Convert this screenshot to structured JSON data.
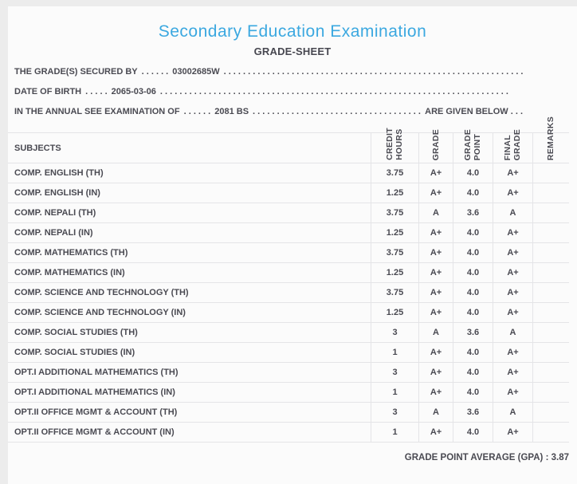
{
  "colors": {
    "accent_blue": "#3BA8E0",
    "text": "#4A4A52",
    "grid_line": "#E4E4E7",
    "page_background": "#ECECEC",
    "card_background": "#FBFBFB"
  },
  "header": {
    "title": "Secondary Education Examination",
    "subtitle": "GRADE-SHEET"
  },
  "info": {
    "lines": [
      {
        "label": "THE GRADE(S) SECURED BY",
        "leader_dots": ". . . . . .",
        "value": "03002685W",
        "fill_dots": ". . . . . . . . . . . . . . . . . . . . . . . . . . . . . . . . . . . . . . . . . . . . . . . . . . . . . . . . . . . . . . . . . . . . . . . .",
        "suffix": ""
      },
      {
        "label": "DATE OF BIRTH",
        "leader_dots": ". . . . .",
        "value": "2065-03-06",
        "fill_dots": ". . . . . . . . . . . . . . . . . . . . . . . . . . . . . . . . . . . . . . . . . . . . . . . . . . . . . . . . . . . . . . . . . . . . . . . .",
        "suffix": ""
      },
      {
        "label": "IN THE ANNUAL SEE EXAMINATION OF",
        "leader_dots": ". . . . . .",
        "value": "2081 BS",
        "fill_dots": ". . . . . . . . . . . . . . . . . . . . . . . . . . . . . . . . . . . . . . . . . . . . . . . . . . . . . . . . . . . . . . . . . . . . . . . .",
        "suffix": "ARE GIVEN BELOW . . ."
      }
    ]
  },
  "table": {
    "subjects_header": "SUBJECTS",
    "column_headers": [
      "CREDIT\nHOURS",
      "GRADE",
      "GRADE\nPOINT",
      "FINAL\nGRADE",
      "REMARKS"
    ],
    "rows": [
      {
        "subject": "COMP. ENGLISH (TH)",
        "credit_hours": "3.75",
        "grade": "A+",
        "grade_point": "4.0",
        "final_grade": "A+",
        "remarks": ""
      },
      {
        "subject": "COMP. ENGLISH (IN)",
        "credit_hours": "1.25",
        "grade": "A+",
        "grade_point": "4.0",
        "final_grade": "A+",
        "remarks": ""
      },
      {
        "subject": "COMP. NEPALI (TH)",
        "credit_hours": "3.75",
        "grade": "A",
        "grade_point": "3.6",
        "final_grade": "A",
        "remarks": ""
      },
      {
        "subject": "COMP. NEPALI (IN)",
        "credit_hours": "1.25",
        "grade": "A+",
        "grade_point": "4.0",
        "final_grade": "A+",
        "remarks": ""
      },
      {
        "subject": "COMP. MATHEMATICS (TH)",
        "credit_hours": "3.75",
        "grade": "A+",
        "grade_point": "4.0",
        "final_grade": "A+",
        "remarks": ""
      },
      {
        "subject": "COMP. MATHEMATICS (IN)",
        "credit_hours": "1.25",
        "grade": "A+",
        "grade_point": "4.0",
        "final_grade": "A+",
        "remarks": ""
      },
      {
        "subject": "COMP. SCIENCE AND TECHNOLOGY (TH)",
        "credit_hours": "3.75",
        "grade": "A+",
        "grade_point": "4.0",
        "final_grade": "A+",
        "remarks": ""
      },
      {
        "subject": "COMP. SCIENCE AND TECHNOLOGY (IN)",
        "credit_hours": "1.25",
        "grade": "A+",
        "grade_point": "4.0",
        "final_grade": "A+",
        "remarks": ""
      },
      {
        "subject": "COMP. SOCIAL STUDIES (TH)",
        "credit_hours": "3",
        "grade": "A",
        "grade_point": "3.6",
        "final_grade": "A",
        "remarks": ""
      },
      {
        "subject": "COMP. SOCIAL STUDIES (IN)",
        "credit_hours": "1",
        "grade": "A+",
        "grade_point": "4.0",
        "final_grade": "A+",
        "remarks": ""
      },
      {
        "subject": "OPT.I ADDITIONAL MATHEMATICS (TH)",
        "credit_hours": "3",
        "grade": "A+",
        "grade_point": "4.0",
        "final_grade": "A+",
        "remarks": ""
      },
      {
        "subject": "OPT.I ADDITIONAL MATHEMATICS (IN)",
        "credit_hours": "1",
        "grade": "A+",
        "grade_point": "4.0",
        "final_grade": "A+",
        "remarks": ""
      },
      {
        "subject": "OPT.II OFFICE MGMT & ACCOUNT (TH)",
        "credit_hours": "3",
        "grade": "A",
        "grade_point": "3.6",
        "final_grade": "A",
        "remarks": ""
      },
      {
        "subject": "OPT.II OFFICE MGMT & ACCOUNT (IN)",
        "credit_hours": "1",
        "grade": "A+",
        "grade_point": "4.0",
        "final_grade": "A+",
        "remarks": ""
      }
    ]
  },
  "footer": {
    "gpa_label": "GRADE POINT AVERAGE (GPA) :",
    "gpa_value": "3.87"
  }
}
